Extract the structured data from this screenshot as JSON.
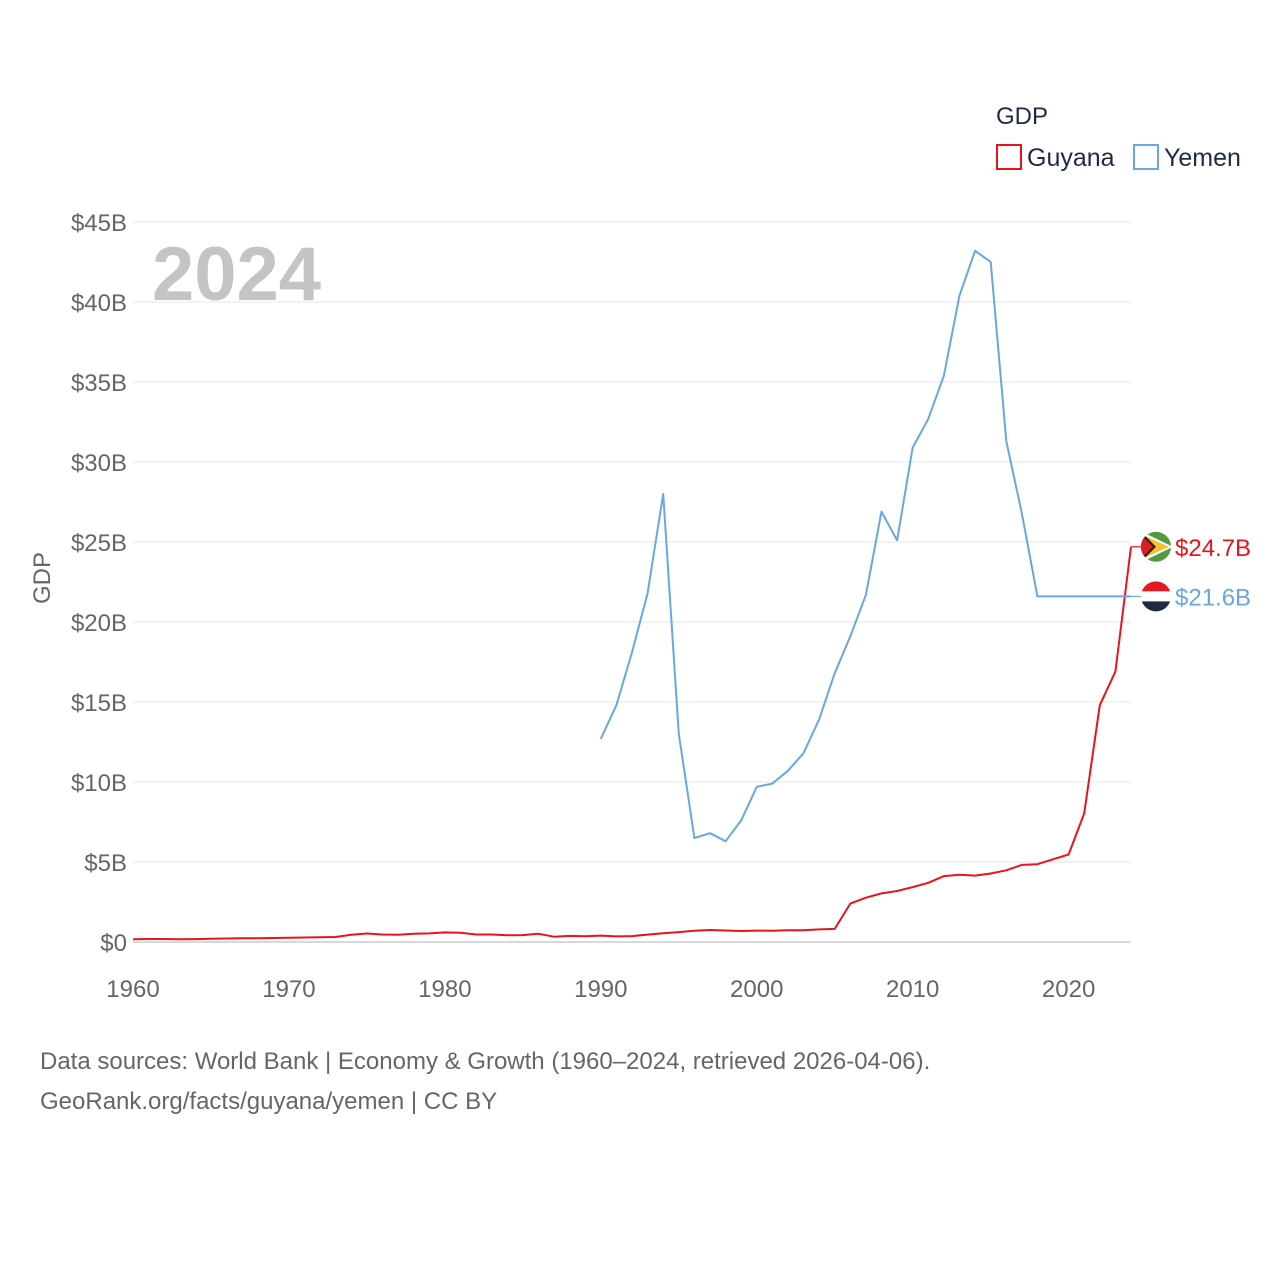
{
  "chart_data": {
    "type": "line",
    "year_display": "2024",
    "ylabel": "GDP",
    "xlabel": "",
    "xlim": [
      1960,
      2024
    ],
    "ylim": [
      0,
      45
    ],
    "x_ticks": [
      "1960",
      "1970",
      "1980",
      "1990",
      "2000",
      "2010",
      "2020"
    ],
    "x_tick_values": [
      1960,
      1970,
      1980,
      1990,
      2000,
      2010,
      2020
    ],
    "y_ticks": [
      "$0",
      "$5B",
      "$10B",
      "$15B",
      "$20B",
      "$25B",
      "$30B",
      "$35B",
      "$40B",
      "$45B"
    ],
    "y_tick_values": [
      0,
      5,
      10,
      15,
      20,
      25,
      30,
      35,
      40,
      45
    ],
    "legend": {
      "title": "GDP",
      "position": "top-right"
    },
    "series": [
      {
        "name": "Guyana",
        "color": "#e8141a",
        "end_label": "$24.7B",
        "flag": "guyana-flag-icon",
        "x": [
          1960,
          1961,
          1962,
          1963,
          1964,
          1965,
          1966,
          1967,
          1968,
          1969,
          1970,
          1971,
          1972,
          1973,
          1974,
          1975,
          1976,
          1977,
          1978,
          1979,
          1980,
          1981,
          1982,
          1983,
          1984,
          1985,
          1986,
          1987,
          1988,
          1989,
          1990,
          1991,
          1992,
          1993,
          1994,
          1995,
          1996,
          1997,
          1998,
          1999,
          2000,
          2001,
          2002,
          2003,
          2004,
          2005,
          2006,
          2007,
          2008,
          2009,
          2010,
          2011,
          2012,
          2013,
          2014,
          2015,
          2016,
          2017,
          2018,
          2019,
          2020,
          2021,
          2022,
          2023,
          2024
        ],
        "values": [
          0.17,
          0.19,
          0.19,
          0.17,
          0.18,
          0.2,
          0.22,
          0.24,
          0.23,
          0.25,
          0.27,
          0.28,
          0.3,
          0.31,
          0.45,
          0.53,
          0.47,
          0.45,
          0.52,
          0.54,
          0.6,
          0.58,
          0.47,
          0.47,
          0.42,
          0.43,
          0.51,
          0.33,
          0.38,
          0.36,
          0.4,
          0.35,
          0.37,
          0.46,
          0.55,
          0.62,
          0.7,
          0.75,
          0.72,
          0.69,
          0.71,
          0.7,
          0.73,
          0.74,
          0.79,
          0.82,
          2.4,
          2.77,
          3.04,
          3.19,
          3.43,
          3.7,
          4.12,
          4.2,
          4.15,
          4.28,
          4.48,
          4.82,
          4.86,
          5.17,
          5.47,
          8.04,
          14.8,
          16.9,
          24.7
        ]
      },
      {
        "name": "Yemen",
        "color": "#6aa6e0",
        "end_label": "$21.6B",
        "flag": "yemen-flag-icon",
        "x": [
          1990,
          1991,
          1992,
          1993,
          1994,
          1995,
          1996,
          1997,
          1998,
          1999,
          2000,
          2001,
          2002,
          2003,
          2004,
          2005,
          2006,
          2007,
          2008,
          2009,
          2010,
          2011,
          2012,
          2013,
          2014,
          2015,
          2016,
          2017,
          2018,
          2019,
          2020,
          2021,
          2022,
          2023,
          2024
        ],
        "values": [
          12.7,
          14.8,
          18.1,
          21.8,
          28.0,
          13.0,
          6.5,
          6.8,
          6.3,
          7.6,
          9.7,
          9.9,
          10.7,
          11.8,
          13.9,
          16.8,
          19.1,
          21.7,
          26.9,
          25.1,
          30.9,
          32.7,
          35.4,
          40.4,
          43.2,
          42.5,
          31.3,
          26.8,
          21.6,
          21.6,
          21.6,
          21.6,
          21.6,
          21.6,
          21.6
        ]
      }
    ]
  },
  "source": {
    "line1": "Data sources: World Bank | Economy & Growth (1960–2024, retrieved 2026-04-06).",
    "line2": "GeoRank.org/facts/guyana/yemen | CC BY"
  }
}
